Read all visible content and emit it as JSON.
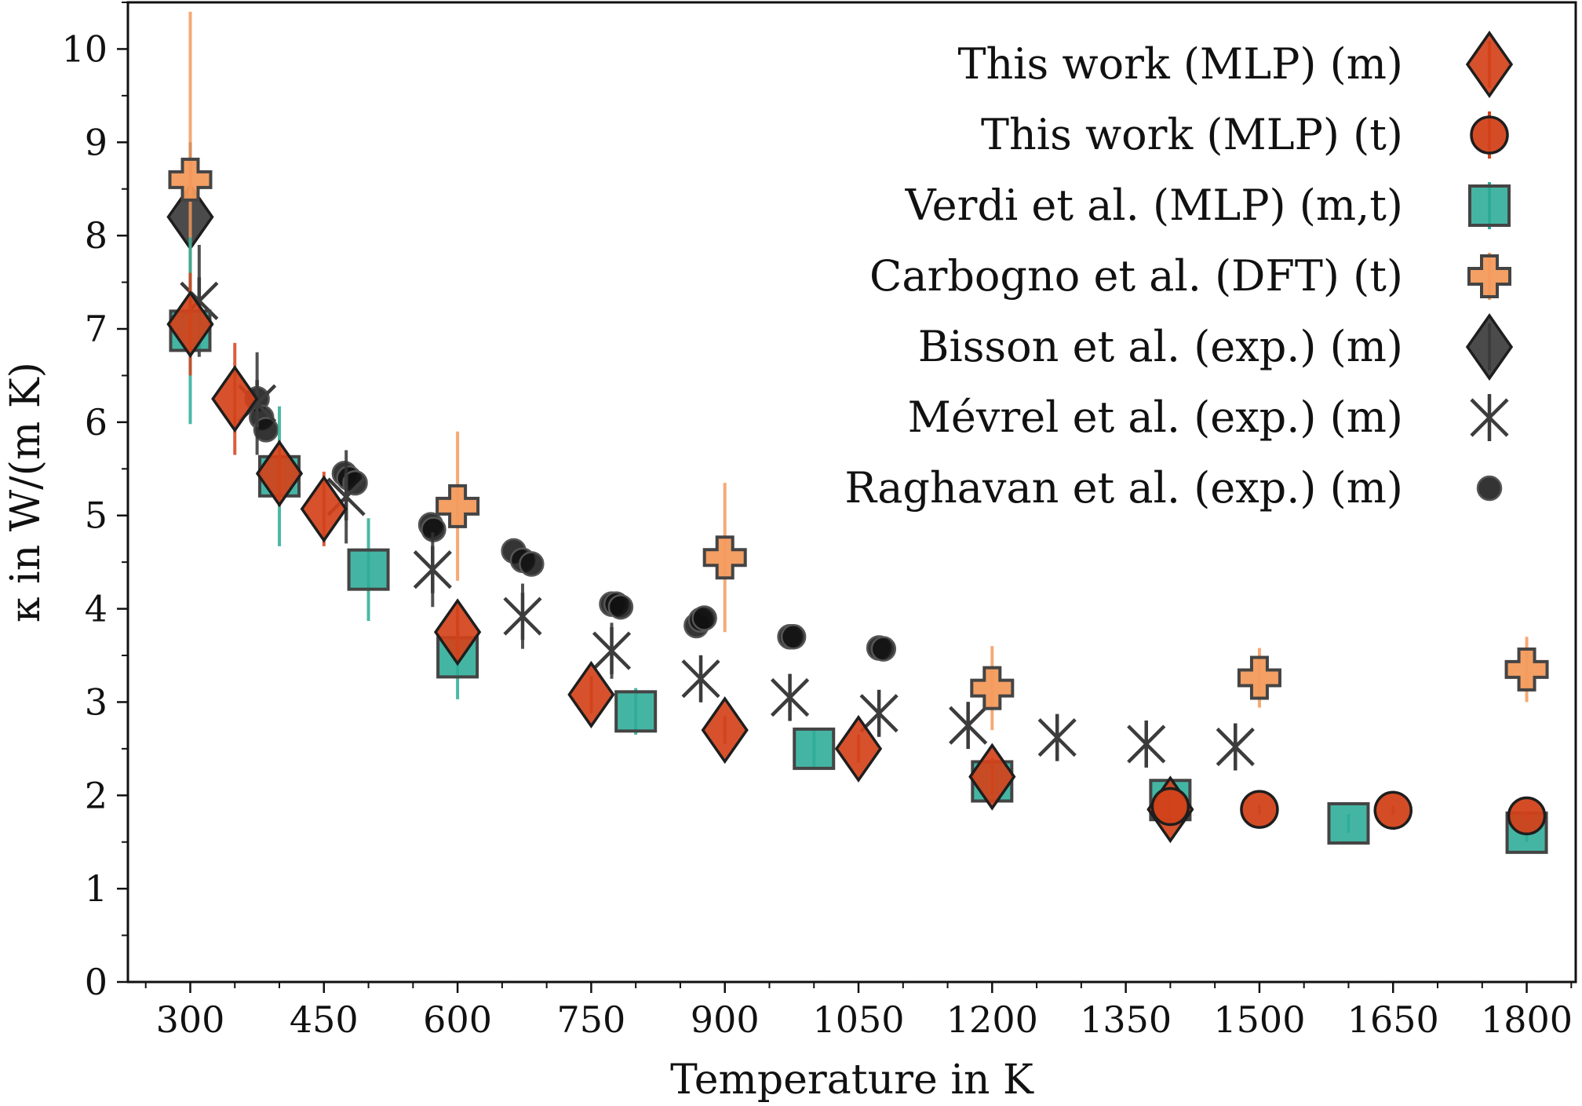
{
  "chart_data": {
    "type": "scatter",
    "xlabel": "Temperature in K",
    "ylabel": "κ in W/(m K)",
    "xlim": [
      230,
      1855
    ],
    "ylim": [
      0,
      10.5
    ],
    "xticks": [
      300,
      450,
      600,
      750,
      900,
      1050,
      1200,
      1350,
      1500,
      1650,
      1800
    ],
    "yticks": [
      0,
      1,
      2,
      3,
      4,
      5,
      6,
      7,
      8,
      9,
      10
    ],
    "legend_position": "top-right",
    "grid": false,
    "series": [
      {
        "name": "This work (MLP) (m)",
        "marker": "diamond",
        "color": "#d2421a",
        "points": [
          {
            "x": 300,
            "y": 7.05,
            "err": 0.55
          },
          {
            "x": 350,
            "y": 6.25,
            "err": 0.6
          },
          {
            "x": 400,
            "y": 5.45,
            "err": 0.35
          },
          {
            "x": 450,
            "y": 5.07,
            "err": 0.4
          },
          {
            "x": 600,
            "y": 3.75,
            "err": 0.3
          },
          {
            "x": 750,
            "y": 3.08,
            "err": 0.2
          },
          {
            "x": 900,
            "y": 2.7,
            "err": 0.15
          },
          {
            "x": 1050,
            "y": 2.5,
            "err": 0.15
          },
          {
            "x": 1200,
            "y": 2.2,
            "err": 0.2
          },
          {
            "x": 1400,
            "y": 1.85,
            "err": 0.15
          }
        ]
      },
      {
        "name": "This work (MLP) (t)",
        "marker": "circle",
        "color": "#d2421a",
        "points": [
          {
            "x": 1400,
            "y": 1.88,
            "err": 0.05
          },
          {
            "x": 1500,
            "y": 1.85,
            "err": 0.05
          },
          {
            "x": 1650,
            "y": 1.84,
            "err": 0.05
          },
          {
            "x": 1800,
            "y": 1.78,
            "err": 0.05
          }
        ]
      },
      {
        "name": "Verdi et al. (MLP) (m,t)",
        "marker": "square",
        "color": "#2bab96",
        "points": [
          {
            "x": 300,
            "y": 6.98,
            "err": 1.0
          },
          {
            "x": 400,
            "y": 5.42,
            "err": 0.75
          },
          {
            "x": 500,
            "y": 4.42,
            "err": 0.55
          },
          {
            "x": 600,
            "y": 3.48,
            "err": 0.45
          },
          {
            "x": 800,
            "y": 2.9,
            "err": 0.25
          },
          {
            "x": 1000,
            "y": 2.5,
            "err": 0.2
          },
          {
            "x": 1200,
            "y": 2.15,
            "err": 0.15
          },
          {
            "x": 1400,
            "y": 1.95,
            "err": 0.15
          },
          {
            "x": 1600,
            "y": 1.7,
            "err": 0.1
          },
          {
            "x": 1800,
            "y": 1.6,
            "err": 0.1
          }
        ]
      },
      {
        "name": "Carbogno et al. (DFT) (t)",
        "marker": "plus",
        "color": "#f39a5c",
        "points": [
          {
            "x": 300,
            "y": 8.6,
            "err": 1.8
          },
          {
            "x": 600,
            "y": 5.1,
            "err": 0.8
          },
          {
            "x": 900,
            "y": 4.55,
            "err": 0.8
          },
          {
            "x": 1200,
            "y": 3.15,
            "err": 0.45
          },
          {
            "x": 1500,
            "y": 3.26,
            "err": 0.32
          },
          {
            "x": 1800,
            "y": 3.35,
            "err": 0.35
          }
        ]
      },
      {
        "name": "Bisson et al. (exp.) (m)",
        "marker": "diamond",
        "color": "#3c3c3c",
        "points": [
          {
            "x": 300,
            "y": 8.2,
            "err": 0.8
          }
        ]
      },
      {
        "name": "Mévrel et al. (exp.) (m)",
        "marker": "cross",
        "color": "#3c3c3c",
        "points": [
          {
            "x": 310,
            "y": 7.3,
            "err": 0.6
          },
          {
            "x": 375,
            "y": 6.2,
            "err": 0.55
          },
          {
            "x": 475,
            "y": 5.2,
            "err": 0.5
          },
          {
            "x": 572,
            "y": 4.42,
            "err": 0.4
          },
          {
            "x": 673,
            "y": 3.92,
            "err": 0.35
          },
          {
            "x": 773,
            "y": 3.55,
            "err": 0.3
          },
          {
            "x": 873,
            "y": 3.25,
            "err": 0.0
          },
          {
            "x": 973,
            "y": 3.05,
            "err": 0.0
          },
          {
            "x": 1073,
            "y": 2.88,
            "err": 0.0
          },
          {
            "x": 1173,
            "y": 2.75,
            "err": 0.0
          },
          {
            "x": 1273,
            "y": 2.62,
            "err": 0.0
          },
          {
            "x": 1373,
            "y": 2.55,
            "err": 0.0
          },
          {
            "x": 1473,
            "y": 2.52,
            "err": 0.0
          }
        ]
      },
      {
        "name": "Raghavan et al. (exp.) (m)",
        "marker": "dot",
        "color": "#111111",
        "points": [
          {
            "x": 375,
            "y": 6.25
          },
          {
            "x": 380,
            "y": 6.05
          },
          {
            "x": 385,
            "y": 5.92
          },
          {
            "x": 473,
            "y": 5.45
          },
          {
            "x": 478,
            "y": 5.4
          },
          {
            "x": 485,
            "y": 5.35
          },
          {
            "x": 570,
            "y": 4.9
          },
          {
            "x": 573,
            "y": 4.85
          },
          {
            "x": 663,
            "y": 4.62
          },
          {
            "x": 673,
            "y": 4.52
          },
          {
            "x": 683,
            "y": 4.48
          },
          {
            "x": 773,
            "y": 4.05
          },
          {
            "x": 778,
            "y": 4.05
          },
          {
            "x": 783,
            "y": 4.02
          },
          {
            "x": 868,
            "y": 3.82
          },
          {
            "x": 873,
            "y": 3.88
          },
          {
            "x": 877,
            "y": 3.9
          },
          {
            "x": 973,
            "y": 3.7
          },
          {
            "x": 977,
            "y": 3.7
          },
          {
            "x": 1073,
            "y": 3.58
          },
          {
            "x": 1078,
            "y": 3.57
          }
        ]
      }
    ]
  }
}
